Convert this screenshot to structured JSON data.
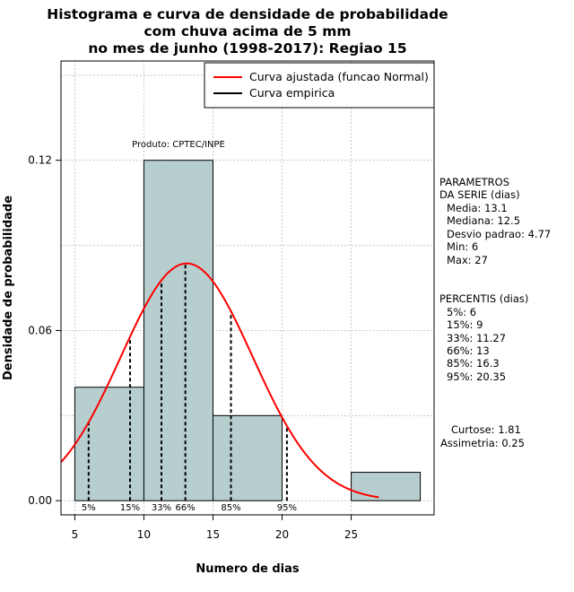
{
  "chart_data": {
    "type": "bar",
    "title_lines": [
      "Histograma e curva de densidade de probabilidade",
      "com chuva acima de 5 mm",
      "no mes de junho (1998-2017): Regiao 15"
    ],
    "xlabel": "Numero de dias",
    "ylabel": "Densidade de probabilidade",
    "xlim": [
      4,
      31
    ],
    "ylim": [
      -0.005,
      0.155
    ],
    "x_ticks": [
      5,
      10,
      15,
      20,
      25
    ],
    "y_ticks": [
      0.0,
      0.06,
      0.12
    ],
    "y_tick_labels": [
      "0.00",
      "0.06",
      "0.12"
    ],
    "grid": true,
    "bins": [
      {
        "from": 5,
        "to": 10,
        "density": 0.04
      },
      {
        "from": 10,
        "to": 15,
        "density": 0.12
      },
      {
        "from": 15,
        "to": 20,
        "density": 0.03
      },
      {
        "from": 20,
        "to": 25,
        "density": 0.0
      },
      {
        "from": 25,
        "to": 30,
        "density": 0.01
      }
    ],
    "bar_color": "#b6cece",
    "normal_curve": {
      "name": "Curva ajustada (funcao Normal)",
      "color": "#ff0000",
      "mean": 13.1,
      "sd": 4.77,
      "x_range": [
        4,
        27
      ]
    },
    "empirical_curve": {
      "name": "Curva empirica",
      "color": "#000000"
    },
    "percentiles": [
      {
        "label": "5%",
        "x": 6
      },
      {
        "label": "15%",
        "x": 9
      },
      {
        "label": "33%",
        "x": 11.27
      },
      {
        "label": "66%",
        "x": 13
      },
      {
        "label": "85%",
        "x": 16.3
      },
      {
        "label": "95%",
        "x": 20.35
      }
    ],
    "annotation": "Produto: CPTEC/INPE",
    "legend_placement": "top-right"
  },
  "side_panel": {
    "parametros": [
      "PARAMETROS",
      "DA SERIE (dias)",
      "Media: 13.1",
      "Mediana: 12.5",
      "Desvio padrao: 4.77",
      "Min: 6",
      "Max: 27"
    ],
    "percentis": [
      "PERCENTIS (dias)",
      "5%: 6",
      "15%: 9",
      "33%: 11.27",
      "66%: 13",
      "85%: 16.3",
      "95%: 20.35"
    ],
    "stats": [
      "Curtose: 1.81",
      "Assimetria: 0.25"
    ]
  }
}
